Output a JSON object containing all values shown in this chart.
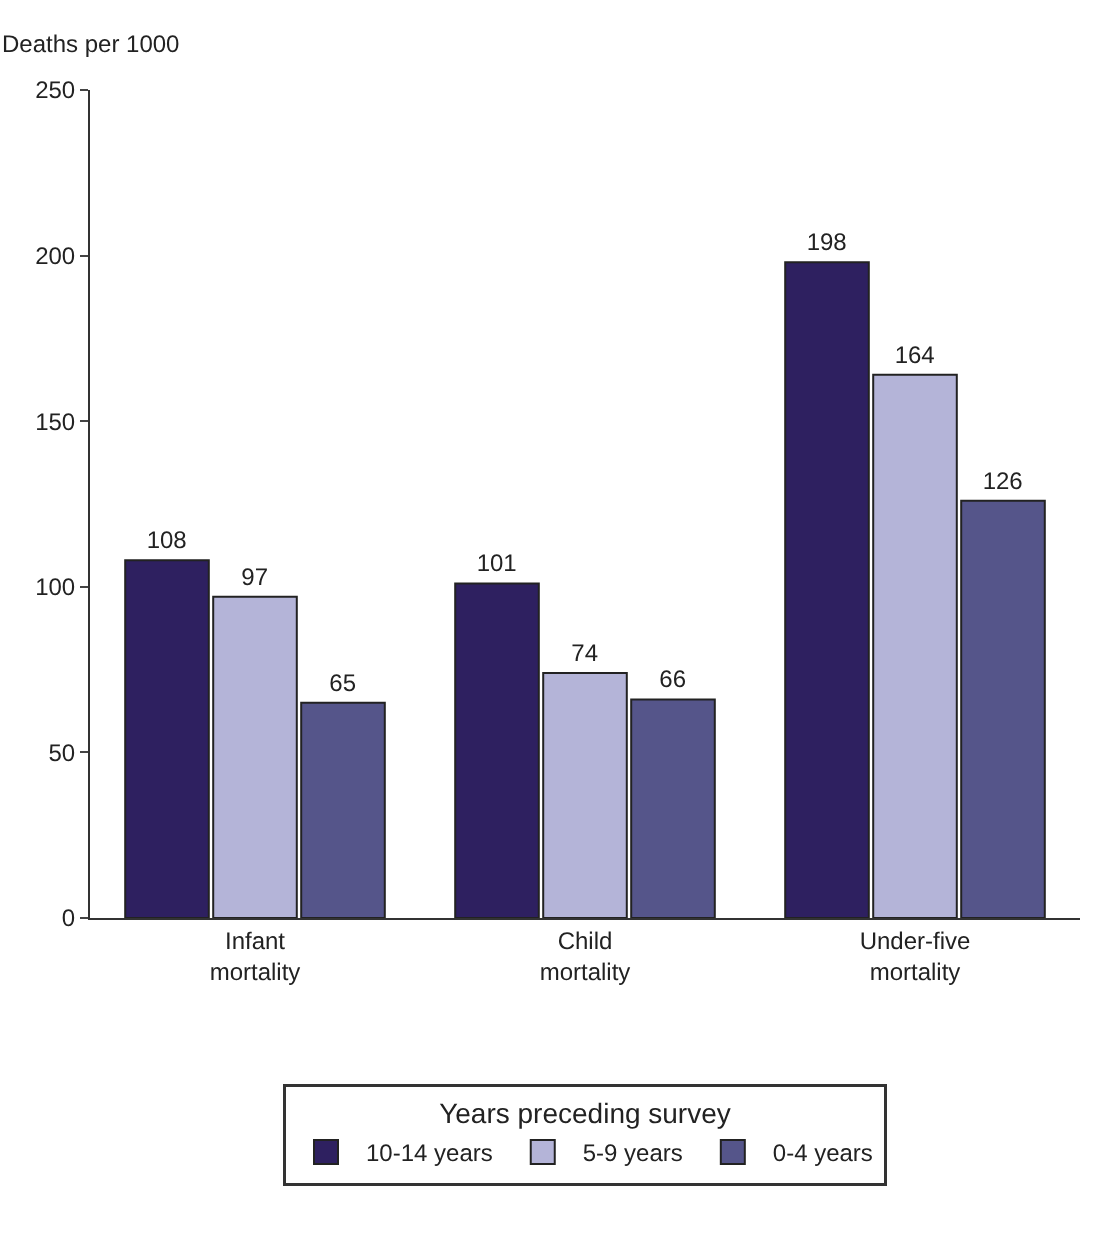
{
  "chart_data": {
    "type": "bar",
    "ylabel": "Deaths per 1000",
    "legend_title": "Years preceding survey",
    "categories": [
      "Infant mortality",
      "Child mortality",
      "Under-five mortality"
    ],
    "series": [
      {
        "name": "10-14 years",
        "color": "#2e2060",
        "values": [
          108,
          101,
          198
        ]
      },
      {
        "name": "5-9 years",
        "color": "#b4b4d8",
        "values": [
          97,
          74,
          164
        ]
      },
      {
        "name": "0-4 years",
        "color": "#55558a",
        "values": [
          65,
          66,
          126
        ]
      }
    ],
    "ylim": [
      0,
      250
    ],
    "yticks": [
      0,
      50,
      100,
      150,
      200,
      250
    ],
    "grid": false,
    "legend": "bottom",
    "data_labels": true
  }
}
